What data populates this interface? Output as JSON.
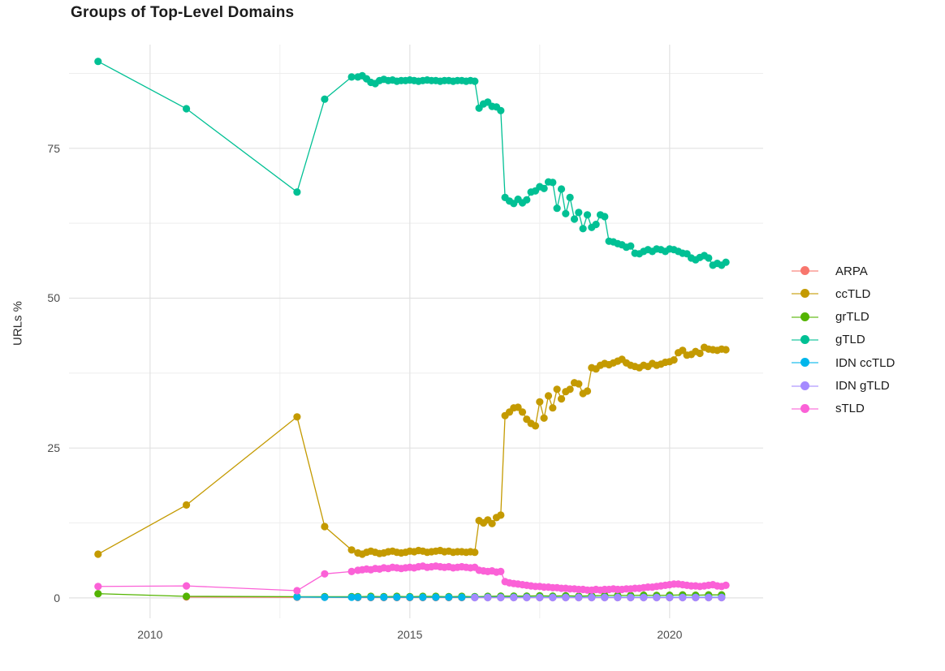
{
  "chart_data": {
    "type": "scatter",
    "title": "Groups of Top-Level Domains",
    "xlabel": "",
    "ylabel": "URLs %",
    "x_ticks": [
      2010,
      2015,
      2020
    ],
    "x_tick_labels": [
      "2010",
      "2015",
      "2020"
    ],
    "x_minor_ticks": [
      2012.5,
      2017.5
    ],
    "y_ticks": [
      0,
      25,
      50,
      75
    ],
    "y_tick_labels": [
      "0",
      "25",
      "50",
      "75"
    ],
    "y_minor_ticks": [
      12.5,
      37.5,
      62.5,
      87.5
    ],
    "xlim": [
      2008.44,
      2021.8
    ],
    "ylim": [
      -3.4,
      92.3
    ],
    "grid": true,
    "legend_position": "right",
    "colors": {
      "grid_major": "#e2e2e2",
      "grid_minor": "#eeeeee",
      "tick_label": "#4d4d4d",
      "title_text": "#1b1b1b"
    },
    "series": [
      {
        "name": "ARPA",
        "color": "#F8766D",
        "points": [
          [
            2010.7,
            0.15
          ],
          [
            2012.83,
            0.1
          ],
          [
            2013.36,
            0.1
          ]
        ],
        "dense": {
          "start": 2014,
          "step": 0.25,
          "values": [
            0.05,
            0.05,
            0.05,
            0.05,
            0.05,
            0.05,
            0.05,
            0.05,
            0.05,
            0.05,
            0.05,
            0.05,
            0.05,
            0.05,
            0.05,
            0.05,
            0.05,
            0.05,
            0.05,
            0.05,
            0.05,
            0.05,
            0.05,
            0.05,
            0.05,
            0.05,
            0.05,
            0.05,
            0.05
          ]
        }
      },
      {
        "name": "ccTLD",
        "color": "#C49A00",
        "points": [
          [
            2009.0,
            7.3
          ],
          [
            2010.7,
            15.5
          ],
          [
            2012.83,
            30.2
          ],
          [
            2013.36,
            11.9
          ],
          [
            2013.88,
            8.0
          ]
        ],
        "dense": {
          "start": 2014,
          "step": 0.0833333,
          "values": [
            7.5,
            7.3,
            7.6,
            7.8,
            7.6,
            7.4,
            7.5,
            7.7,
            7.8,
            7.6,
            7.5,
            7.6,
            7.8,
            7.7,
            7.9,
            7.8,
            7.6,
            7.7,
            7.8,
            7.9,
            7.7,
            7.8,
            7.6,
            7.7,
            7.7,
            7.6,
            7.7,
            7.6,
            12.9,
            12.5,
            13.0,
            12.4,
            13.4,
            13.8,
            30.4,
            31.0,
            31.7,
            31.8,
            31.0,
            29.8,
            29.1,
            28.7,
            32.7,
            30.0,
            33.7,
            31.7,
            34.8,
            33.2,
            34.4,
            34.8,
            35.9,
            35.7,
            34.1,
            34.5,
            38.4,
            38.2,
            38.8,
            39.1,
            38.9,
            39.2,
            39.5,
            39.8,
            39.2,
            38.8,
            38.6,
            38.4,
            38.8,
            38.6,
            39.1,
            38.8,
            39.0,
            39.3,
            39.4,
            39.7,
            40.9,
            41.3,
            40.5,
            40.6,
            41.1,
            40.8,
            41.8,
            41.5,
            41.4,
            41.3,
            41.5,
            41.4
          ]
        }
      },
      {
        "name": "grTLD",
        "color": "#53B400",
        "points": [
          [
            2009.0,
            0.7
          ],
          [
            2010.7,
            0.25
          ],
          [
            2012.83,
            0.2
          ],
          [
            2013.36,
            0.2
          ],
          [
            2013.88,
            0.2
          ]
        ],
        "dense": {
          "start": 2014,
          "step": 0.25,
          "values": [
            0.2,
            0.25,
            0.2,
            0.25,
            0.2,
            0.25,
            0.25,
            0.2,
            0.25,
            0.2,
            0.25,
            0.3,
            0.3,
            0.3,
            0.35,
            0.3,
            0.35,
            0.3,
            0.35,
            0.4,
            0.4,
            0.4,
            0.45,
            0.4,
            0.45,
            0.5,
            0.45,
            0.5,
            0.5
          ]
        }
      },
      {
        "name": "gTLD",
        "color": "#00C094",
        "points": [
          [
            2009.0,
            89.5
          ],
          [
            2010.7,
            81.6
          ],
          [
            2012.83,
            67.7
          ],
          [
            2013.36,
            83.2
          ],
          [
            2013.88,
            86.9
          ]
        ],
        "dense": {
          "start": 2014,
          "step": 0.0833333,
          "values": [
            86.9,
            87.1,
            86.6,
            86.0,
            85.8,
            86.3,
            86.5,
            86.3,
            86.4,
            86.2,
            86.3,
            86.3,
            86.4,
            86.3,
            86.2,
            86.3,
            86.4,
            86.3,
            86.3,
            86.2,
            86.3,
            86.3,
            86.2,
            86.3,
            86.3,
            86.2,
            86.3,
            86.2,
            81.7,
            82.4,
            82.7,
            82.0,
            81.9,
            81.3,
            66.8,
            66.2,
            65.8,
            66.5,
            65.9,
            66.4,
            67.7,
            67.9,
            68.6,
            68.3,
            69.4,
            69.3,
            65.0,
            68.2,
            64.1,
            66.8,
            63.2,
            64.3,
            61.6,
            63.9,
            61.8,
            62.3,
            63.9,
            63.6,
            59.5,
            59.4,
            59.1,
            58.9,
            58.5,
            58.7,
            57.5,
            57.4,
            57.8,
            58.1,
            57.8,
            58.2,
            58.1,
            57.8,
            58.2,
            58.1,
            57.8,
            57.5,
            57.4,
            56.7,
            56.4,
            56.8,
            57.1,
            56.7,
            55.5,
            55.8,
            55.5,
            56.0
          ]
        }
      },
      {
        "name": "IDN ccTLD",
        "color": "#00B6EB",
        "points": [
          [
            2012.83,
            0.15
          ],
          [
            2013.36,
            0.1
          ],
          [
            2013.88,
            0.1
          ]
        ],
        "dense": {
          "start": 2014,
          "step": 0.25,
          "values": [
            0.1,
            0.1,
            0.1,
            0.1,
            0.1,
            0.1,
            0.1,
            0.1,
            0.1,
            0.1,
            0.1,
            0.1,
            0.1,
            0.1,
            0.1,
            0.1,
            0.1,
            0.1,
            0.1,
            0.1,
            0.1,
            0.1,
            0.1,
            0.1,
            0.1,
            0.1,
            0.1,
            0.1,
            0.1
          ]
        }
      },
      {
        "name": "IDN gTLD",
        "color": "#A58AFF",
        "points": [],
        "dense": {
          "start": 2016.25,
          "step": 0.25,
          "values": [
            0.05,
            0.05,
            0.05,
            0.05,
            0.05,
            0.05,
            0.05,
            0.05,
            0.05,
            0.05,
            0.05,
            0.05,
            0.05,
            0.05,
            0.05,
            0.05,
            0.05,
            0.05,
            0.05,
            0.05
          ]
        }
      },
      {
        "name": "sTLD",
        "color": "#FB61D7",
        "points": [
          [
            2009.0,
            1.9
          ],
          [
            2010.7,
            2.0
          ],
          [
            2012.83,
            1.2
          ],
          [
            2013.36,
            4.0
          ],
          [
            2013.88,
            4.4
          ]
        ],
        "dense": {
          "start": 2014,
          "step": 0.0833333,
          "values": [
            4.6,
            4.7,
            4.8,
            4.7,
            4.9,
            4.8,
            5.0,
            4.9,
            5.1,
            5.0,
            4.9,
            5.0,
            5.1,
            5.0,
            5.2,
            5.3,
            5.1,
            5.2,
            5.3,
            5.2,
            5.1,
            5.2,
            5.0,
            5.1,
            5.2,
            5.1,
            5.0,
            5.1,
            4.6,
            4.5,
            4.4,
            4.5,
            4.3,
            4.4,
            2.7,
            2.5,
            2.4,
            2.3,
            2.2,
            2.1,
            2.0,
            1.9,
            1.9,
            1.8,
            1.8,
            1.7,
            1.7,
            1.6,
            1.6,
            1.5,
            1.5,
            1.4,
            1.4,
            1.3,
            1.3,
            1.4,
            1.3,
            1.4,
            1.4,
            1.5,
            1.4,
            1.4,
            1.5,
            1.5,
            1.6,
            1.6,
            1.7,
            1.8,
            1.8,
            1.9,
            2.0,
            2.1,
            2.2,
            2.3,
            2.3,
            2.2,
            2.1,
            2.0,
            2.0,
            1.9,
            2.0,
            2.1,
            2.2,
            2.0,
            1.9,
            2.1
          ]
        }
      }
    ]
  }
}
